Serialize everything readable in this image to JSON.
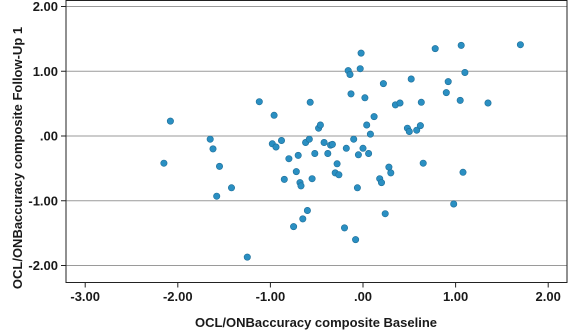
{
  "chart_data": {
    "type": "scatter",
    "xlabel": "OCL/ONBaccuracy composite Baseline",
    "ylabel": "OCL/ONBaccuracy composite Follow-Up 1",
    "xlim": [
      -3.3,
      2.2
    ],
    "ylim": [
      -2.2,
      2.0
    ],
    "xticks": [
      -3.0,
      -2.0,
      -1.0,
      0.0,
      1.0,
      2.0
    ],
    "xtick_labels": [
      "-3.00",
      "-2.00",
      "-1.00",
      ".00",
      "1.00",
      "2.00"
    ],
    "yticks": [
      -2.0,
      -1.0,
      0.0,
      1.0,
      2.0
    ],
    "ytick_labels": [
      "-2.00",
      "-1.00",
      ".00",
      "1.00",
      "2.00"
    ],
    "grid": "horizontal",
    "point_color": "#2a8fc2",
    "x": [
      -2.15,
      -2.08,
      -1.65,
      -1.62,
      -1.58,
      -1.55,
      -1.42,
      -1.25,
      -1.12,
      -0.98,
      -0.96,
      -0.94,
      -0.88,
      -0.85,
      -0.8,
      -0.75,
      -0.72,
      -0.7,
      -0.68,
      -0.67,
      -0.65,
      -0.62,
      -0.6,
      -0.58,
      -0.57,
      -0.55,
      -0.52,
      -0.48,
      -0.46,
      -0.42,
      -0.38,
      -0.35,
      -0.33,
      -0.3,
      -0.28,
      -0.26,
      -0.2,
      -0.18,
      -0.16,
      -0.14,
      -0.13,
      -0.1,
      -0.08,
      -0.06,
      -0.05,
      -0.03,
      -0.02,
      0.0,
      0.02,
      0.04,
      0.06,
      0.08,
      0.12,
      0.18,
      0.2,
      0.22,
      0.24,
      0.28,
      0.3,
      0.35,
      0.4,
      0.48,
      0.5,
      0.52,
      0.58,
      0.62,
      0.63,
      0.65,
      0.78,
      0.9,
      0.92,
      0.98,
      1.05,
      1.06,
      1.08,
      1.1,
      1.35,
      1.7
    ],
    "y": [
      -0.42,
      0.23,
      -0.05,
      -0.2,
      -0.93,
      -0.47,
      -0.8,
      -1.87,
      0.53,
      -0.12,
      0.32,
      -0.17,
      -0.07,
      -0.67,
      -0.35,
      -1.4,
      -0.55,
      -0.3,
      -0.72,
      -0.77,
      -1.28,
      -0.1,
      -1.15,
      -0.05,
      0.52,
      -0.66,
      -0.27,
      0.12,
      0.17,
      -0.1,
      -0.27,
      -0.14,
      -0.13,
      -0.57,
      -0.43,
      -0.6,
      -1.42,
      -0.19,
      1.01,
      0.95,
      0.65,
      -0.05,
      -1.6,
      -0.8,
      -0.29,
      1.04,
      1.28,
      -0.19,
      0.59,
      0.17,
      -0.27,
      0.03,
      0.3,
      -0.66,
      -0.72,
      0.81,
      -1.2,
      -0.48,
      -0.57,
      0.48,
      0.51,
      0.12,
      0.07,
      0.88,
      0.09,
      0.16,
      0.52,
      -0.42,
      1.35,
      0.67,
      0.84,
      -1.05,
      0.55,
      1.4,
      -0.56,
      0.98,
      0.51,
      1.41
    ]
  }
}
